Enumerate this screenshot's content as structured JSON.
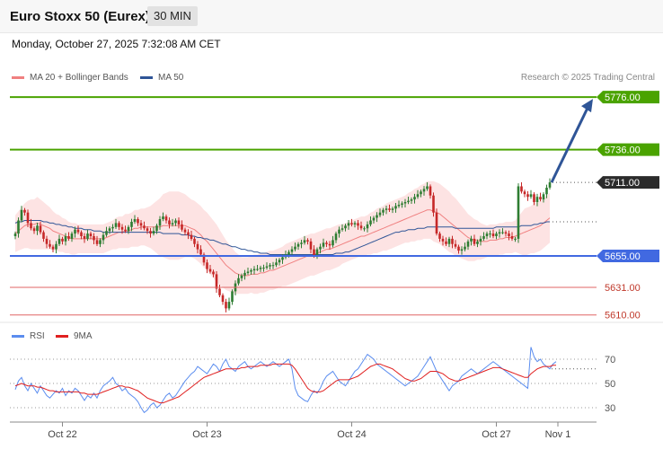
{
  "header": {
    "title": "Euro Stoxx 50 (Eurex)",
    "timeframe": "30 MIN"
  },
  "datetime": "Monday, October 27, 2025 7:32:08 AM CET",
  "legend": {
    "ma20_label": "MA 20 + Bollinger Bands",
    "ma50_label": "MA 50",
    "credit": "Research © 2025 Trading Central",
    "rsi_label": "RSI",
    "rsi_ma_label": "9MA"
  },
  "colors": {
    "resistance": "#4aa300",
    "support": "#4169e1",
    "level_minor": "#e06666",
    "bollinger_fill": "#fde3e3",
    "ma20": "#f08080",
    "ma50": "#2f5597",
    "arrow": "#2f5597",
    "candle_up": "#2e7d32",
    "candle_down": "#c62828",
    "rsi": "#5b8def",
    "rsi_ma": "#e02020"
  },
  "chart_data": [
    {
      "type": "candlestick",
      "title": "Euro Stoxx 50 (Eurex)",
      "x_labels": [
        "Oct 22",
        "Oct 23",
        "Oct 24",
        "Oct 27",
        "Nov 1"
      ],
      "ylim": [
        5605,
        5785
      ],
      "last_price": 5711.0,
      "levels": [
        {
          "value": 5776.0,
          "label": "5776.00",
          "kind": "resistance"
        },
        {
          "value": 5736.0,
          "label": "5736.00",
          "kind": "resistance"
        },
        {
          "value": 5711.0,
          "label": "5711.00",
          "kind": "last"
        },
        {
          "value": 5655.0,
          "label": "5655.00",
          "kind": "support"
        },
        {
          "value": 5631.0,
          "label": "5631.00",
          "kind": "minor"
        },
        {
          "value": 5610.0,
          "label": "5610.00",
          "kind": "minor"
        }
      ],
      "close": [
        5672,
        5682,
        5690,
        5688,
        5680,
        5676,
        5674,
        5678,
        5673,
        5668,
        5664,
        5662,
        5660,
        5664,
        5668,
        5666,
        5670,
        5668,
        5672,
        5675,
        5673,
        5670,
        5668,
        5672,
        5670,
        5667,
        5664,
        5667,
        5671,
        5674,
        5676,
        5677,
        5680,
        5677,
        5675,
        5674,
        5677,
        5681,
        5683,
        5680,
        5678,
        5676,
        5674,
        5672,
        5674,
        5678,
        5683,
        5685,
        5682,
        5679,
        5680,
        5682,
        5679,
        5675,
        5673,
        5671,
        5668,
        5664,
        5660,
        5656,
        5650,
        5645,
        5643,
        5641,
        5630,
        5625,
        5620,
        5615,
        5620,
        5628,
        5634,
        5638,
        5640,
        5642,
        5643,
        5644,
        5645,
        5645,
        5646,
        5646,
        5647,
        5648,
        5648,
        5650,
        5652,
        5654,
        5656,
        5658,
        5660,
        5662,
        5664,
        5665,
        5667,
        5666,
        5660,
        5655,
        5660,
        5662,
        5665,
        5664,
        5663,
        5667,
        5672,
        5675,
        5676,
        5678,
        5680,
        5679,
        5680,
        5678,
        5676,
        5676,
        5679,
        5682,
        5684,
        5686,
        5688,
        5690,
        5691,
        5690,
        5691,
        5693,
        5694,
        5695,
        5696,
        5697,
        5698,
        5700,
        5702,
        5704,
        5706,
        5708,
        5701,
        5688,
        5672,
        5668,
        5666,
        5664,
        5668,
        5664,
        5662,
        5659,
        5660,
        5662,
        5666,
        5668,
        5664,
        5666,
        5668,
        5670,
        5672,
        5672,
        5670,
        5672,
        5673,
        5673,
        5672,
        5670,
        5668,
        5668,
        5708,
        5704,
        5702,
        5700,
        5702,
        5696,
        5700,
        5698,
        5702,
        5707,
        5711
      ],
      "ma20": [
        5672,
        5674,
        5676,
        5678,
        5679,
        5679,
        5679,
        5680,
        5679,
        5678,
        5677,
        5676,
        5674,
        5673,
        5672,
        5671,
        5670,
        5669,
        5668,
        5668,
        5668,
        5668,
        5668,
        5668,
        5668,
        5668,
        5668,
        5668,
        5668,
        5669,
        5670,
        5671,
        5672,
        5673,
        5673,
        5674,
        5674,
        5675,
        5676,
        5676,
        5677,
        5677,
        5677,
        5677,
        5677,
        5677,
        5677,
        5678,
        5678,
        5678,
        5678,
        5678,
        5678,
        5678,
        5678,
        5677,
        5676,
        5675,
        5673,
        5671,
        5668,
        5666,
        5663,
        5660,
        5657,
        5654,
        5651,
        5648,
        5646,
        5644,
        5642,
        5641,
        5640,
        5640,
        5640,
        5641,
        5641,
        5641,
        5642,
        5642,
        5643,
        5644,
        5644,
        5645,
        5646,
        5647,
        5648,
        5649,
        5650,
        5651,
        5652,
        5653,
        5654,
        5655,
        5656,
        5656,
        5657,
        5658,
        5659,
        5660,
        5660,
        5661,
        5662,
        5663,
        5664,
        5665,
        5666,
        5667,
        5668,
        5669,
        5670,
        5670,
        5671,
        5672,
        5673,
        5674,
        5675,
        5676,
        5677,
        5678,
        5679,
        5680,
        5681,
        5682,
        5683,
        5684,
        5685,
        5686,
        5687,
        5688,
        5689,
        5690,
        5690,
        5689,
        5688,
        5687,
        5685,
        5683,
        5681,
        5679,
        5677,
        5675,
        5673,
        5671,
        5669,
        5668,
        5667,
        5667,
        5666,
        5666,
        5666,
        5667,
        5667,
        5667,
        5668,
        5668,
        5669,
        5669,
        5669,
        5670,
        5671,
        5672,
        5673,
        5674,
        5675,
        5676,
        5677,
        5678,
        5680,
        5682,
        5684
      ],
      "ma50": [
        5680,
        5681,
        5681,
        5682,
        5682,
        5682,
        5682,
        5682,
        5682,
        5681,
        5681,
        5680,
        5680,
        5679,
        5679,
        5678,
        5678,
        5677,
        5677,
        5676,
        5676,
        5676,
        5675,
        5675,
        5675,
        5674,
        5674,
        5674,
        5673,
        5673,
        5673,
        5673,
        5673,
        5673,
        5673,
        5673,
        5673,
        5673,
        5673,
        5673,
        5673,
        5673,
        5673,
        5673,
        5673,
        5673,
        5673,
        5672,
        5672,
        5672,
        5672,
        5672,
        5672,
        5671,
        5671,
        5671,
        5670,
        5670,
        5669,
        5669,
        5668,
        5668,
        5667,
        5667,
        5666,
        5665,
        5664,
        5664,
        5663,
        5662,
        5662,
        5661,
        5660,
        5660,
        5659,
        5659,
        5658,
        5658,
        5657,
        5657,
        5657,
        5656,
        5656,
        5656,
        5656,
        5656,
        5656,
        5656,
        5656,
        5656,
        5656,
        5656,
        5656,
        5656,
        5656,
        5656,
        5656,
        5656,
        5656,
        5656,
        5656,
        5656,
        5657,
        5657,
        5657,
        5658,
        5658,
        5659,
        5660,
        5661,
        5662,
        5663,
        5664,
        5665,
        5666,
        5667,
        5668,
        5669,
        5670,
        5671,
        5672,
        5673,
        5673,
        5674,
        5674,
        5675,
        5675,
        5675,
        5676,
        5676,
        5676,
        5677,
        5677,
        5677,
        5677,
        5677,
        5677,
        5677,
        5677,
        5677,
        5676,
        5676,
        5676,
        5676,
        5676,
        5676,
        5676,
        5676,
        5676,
        5676,
        5676,
        5676,
        5676,
        5677,
        5677,
        5677,
        5677,
        5677,
        5677,
        5677,
        5677,
        5678,
        5678,
        5678,
        5678,
        5679,
        5679,
        5680,
        5680,
        5681,
        5681
      ],
      "bb_width": [
        14,
        15,
        16,
        17,
        18,
        19,
        19,
        20,
        19,
        18,
        17,
        16,
        15,
        14,
        14,
        13,
        13,
        12,
        12,
        12,
        11,
        11,
        11,
        11,
        11,
        11,
        11,
        11,
        11,
        11,
        11,
        11,
        12,
        12,
        12,
        13,
        13,
        13,
        14,
        14,
        14,
        14,
        15,
        16,
        18,
        20,
        22,
        24,
        25,
        26,
        26,
        26,
        26,
        25,
        24,
        23,
        22,
        22,
        22,
        22,
        22,
        22,
        22,
        22,
        22,
        21,
        20,
        19,
        18,
        17,
        16,
        15,
        14,
        14,
        14,
        14,
        15,
        15,
        15,
        15,
        15,
        15,
        15,
        15,
        15,
        15,
        16,
        16,
        16,
        16,
        16,
        16,
        16,
        16,
        16,
        16,
        16,
        16,
        16,
        16,
        16,
        16,
        16,
        16,
        15,
        15,
        15,
        15,
        15,
        15,
        15,
        15,
        15,
        16,
        16,
        17,
        17,
        17,
        18,
        18,
        18,
        18,
        18,
        18,
        18,
        19,
        19,
        20,
        20,
        21,
        21,
        22,
        22,
        23,
        23,
        23,
        23,
        23,
        23,
        22,
        22,
        21,
        20,
        19,
        18,
        17,
        16,
        15,
        14,
        13,
        12,
        12,
        12,
        12,
        12,
        12,
        12,
        12,
        12,
        12,
        14,
        16,
        18,
        18,
        18,
        19,
        19,
        19,
        19,
        19,
        19
      ],
      "rsi": [
        45,
        52,
        55,
        48,
        44,
        50,
        46,
        42,
        48,
        44,
        40,
        38,
        41,
        44,
        42,
        46,
        40,
        44,
        42,
        46,
        44,
        40,
        36,
        40,
        38,
        42,
        38,
        44,
        48,
        50,
        52,
        55,
        50,
        48,
        44,
        46,
        42,
        40,
        38,
        35,
        30,
        26,
        28,
        32,
        34,
        30,
        32,
        36,
        40,
        42,
        38,
        40,
        44,
        48,
        52,
        55,
        58,
        60,
        64,
        62,
        60,
        58,
        62,
        66,
        64,
        60,
        66,
        70,
        64,
        62,
        60,
        64,
        66,
        68,
        64,
        62,
        64,
        66,
        68,
        66,
        64,
        66,
        68,
        66,
        64,
        66,
        68,
        70,
        62,
        46,
        40,
        38,
        36,
        35,
        40,
        44,
        42,
        46,
        52,
        56,
        58,
        60,
        56,
        52,
        50,
        48,
        52,
        56,
        60,
        62,
        66,
        70,
        74,
        72,
        70,
        66,
        64,
        62,
        60,
        58,
        56,
        54,
        52,
        50,
        48,
        50,
        52,
        54,
        56,
        60,
        64,
        68,
        72,
        66,
        60,
        56,
        52,
        48,
        44,
        48,
        50,
        52,
        56,
        58,
        60,
        62,
        60,
        58,
        60,
        62,
        64,
        66,
        68,
        66,
        64,
        62,
        60,
        58,
        56,
        54,
        52,
        50,
        48,
        46,
        80,
        72,
        68,
        70,
        66,
        64,
        62,
        66,
        68
      ],
      "rsi_ma": [
        48,
        49,
        50,
        49,
        48,
        48,
        48,
        47,
        47,
        46,
        45,
        44,
        44,
        43,
        43,
        43,
        43,
        43,
        43,
        43,
        43,
        42,
        42,
        41,
        41,
        41,
        41,
        42,
        43,
        44,
        45,
        46,
        47,
        48,
        48,
        47,
        47,
        46,
        45,
        44,
        42,
        40,
        38,
        37,
        36,
        35,
        34,
        34,
        35,
        36,
        37,
        38,
        39,
        41,
        43,
        45,
        47,
        49,
        51,
        53,
        55,
        56,
        57,
        58,
        59,
        60,
        61,
        62,
        62,
        62,
        62,
        62,
        63,
        63,
        64,
        64,
        64,
        64,
        65,
        65,
        65,
        65,
        66,
        66,
        66,
        66,
        66,
        66,
        65,
        62,
        58,
        54,
        50,
        46,
        44,
        43,
        43,
        43,
        44,
        46,
        48,
        50,
        52,
        53,
        53,
        53,
        53,
        54,
        55,
        56,
        58,
        60,
        62,
        64,
        65,
        66,
        66,
        65,
        64,
        63,
        62,
        60,
        58,
        56,
        54,
        53,
        52,
        52,
        53,
        54,
        56,
        58,
        60,
        60,
        60,
        59,
        58,
        56,
        54,
        53,
        52,
        52,
        53,
        54,
        55,
        56,
        57,
        58,
        59,
        60,
        61,
        62,
        63,
        63,
        63,
        62,
        61,
        60,
        59,
        58,
        57,
        56,
        55,
        55,
        58,
        60,
        62,
        63,
        64,
        64,
        64,
        65,
        65
      ],
      "rsi_levels": [
        70,
        50,
        30
      ]
    }
  ]
}
